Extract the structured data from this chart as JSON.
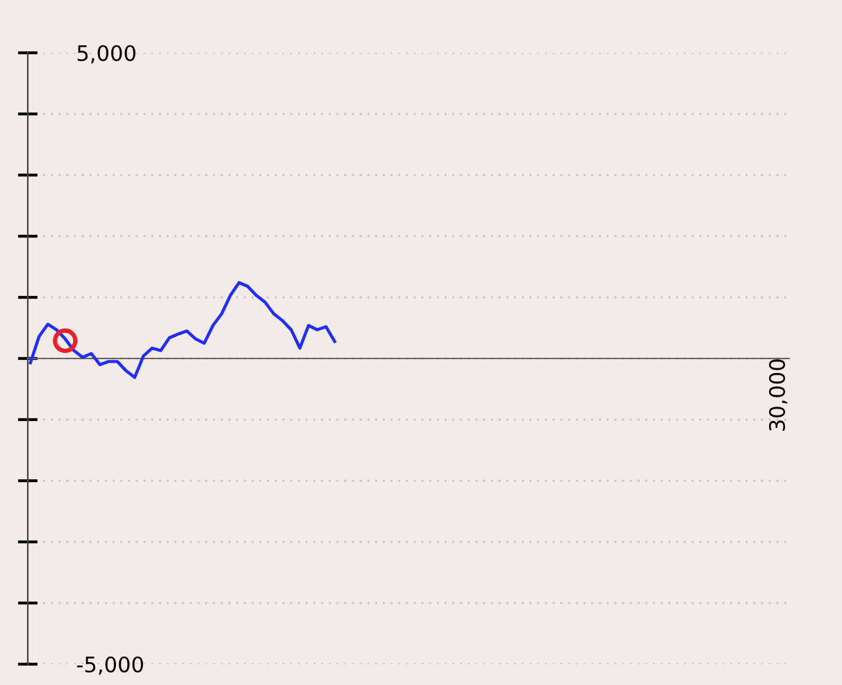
{
  "chart_data": {
    "type": "line",
    "categories": [
      null,
      null,
      null,
      null,
      null,
      null,
      null,
      null,
      null,
      null,
      null,
      null,
      null,
      null,
      null,
      null,
      null,
      null,
      null,
      null,
      null,
      null,
      null,
      null,
      null,
      null,
      null,
      null,
      null,
      null,
      null,
      null,
      null,
      null,
      null,
      null,
      null,
      null,
      null,
      null,
      null,
      null,
      null,
      null,
      null,
      null,
      null,
      null,
      null,
      null,
      null,
      null,
      null,
      null,
      null,
      null,
      null,
      null,
      null,
      null,
      null,
      null,
      null,
      null,
      null,
      null,
      null,
      null,
      null,
      null,
      null,
      null,
      null,
      null,
      null,
      null,
      null,
      null,
      null,
      null,
      null,
      null,
      null,
      null,
      null,
      null,
      null,
      null
    ],
    "series": [
      {
        "color": "#1f2eff",
        "values": [
          -70,
          360,
          560,
          470,
          320,
          130,
          20,
          80,
          -100,
          -50,
          -50,
          -200,
          -310,
          40,
          170,
          130,
          340,
          400,
          450,
          320,
          250,
          540,
          730,
          1030,
          1240,
          1180,
          1030,
          920,
          730,
          620,
          470,
          170,
          540,
          470,
          520,
          280,
          null,
          null,
          null,
          null,
          null,
          null,
          null,
          null,
          null,
          null,
          null,
          null,
          null,
          null,
          null,
          null,
          null,
          null,
          null,
          null,
          null,
          null,
          null,
          null,
          null,
          null,
          null,
          null,
          null,
          null,
          null,
          null,
          null,
          null,
          null,
          null,
          null,
          null,
          null,
          null,
          null,
          null,
          null,
          null,
          null,
          null,
          null,
          null,
          null,
          null,
          null,
          null
        ]
      },
      {
        "type": "scatter",
        "color": "#e8202a",
        "marker": "circle",
        "values": [
          null,
          null,
          null,
          null,
          290,
          null,
          null,
          null,
          null,
          null,
          null,
          null,
          null,
          null,
          null,
          null,
          null,
          null,
          null,
          null,
          null,
          null,
          null,
          null,
          null,
          null,
          null,
          null,
          null,
          null,
          null,
          null,
          null,
          null,
          null,
          null,
          null,
          null,
          null,
          null,
          null,
          null,
          null,
          null,
          null,
          null,
          null,
          null,
          null,
          null,
          null,
          null,
          null,
          null,
          null,
          null,
          null,
          null,
          null,
          null,
          null,
          null,
          null,
          null,
          null,
          null,
          null,
          null,
          null,
          null,
          null,
          null,
          null,
          null,
          null,
          null,
          null,
          null,
          null,
          null,
          null,
          null,
          null,
          null,
          null,
          null,
          null,
          null
        ]
      }
    ],
    "ylim": [
      -5000,
      5000
    ],
    "yticks": [
      {
        "value": -5000,
        "label": "-5,000"
      },
      {
        "value": -4000,
        "label": null
      },
      {
        "value": -3000,
        "label": null
      },
      {
        "value": -2000,
        "label": null
      },
      {
        "value": -1000,
        "label": null
      },
      {
        "value": 0,
        "label": null
      },
      {
        "value": 1000,
        "label": null
      },
      {
        "value": 2000,
        "label": null
      },
      {
        "value": 3000,
        "label": null
      },
      {
        "value": 4000,
        "label": null
      },
      {
        "value": 5000,
        "label": "5,000"
      }
    ],
    "tick_labels": "y",
    "annotations": [
      "30,000"
    ],
    "grid": "y"
  }
}
